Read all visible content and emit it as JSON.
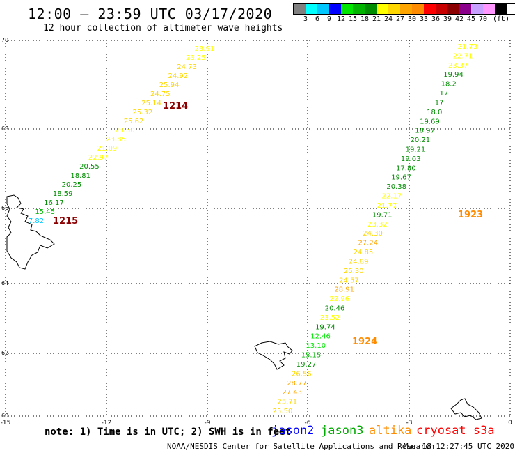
{
  "header": {
    "title": "12:00 – 23:59 UTC 03/17/2020",
    "subtitle": "12 hour collection of altimeter wave heights"
  },
  "legend": {
    "unit": "(ft)",
    "colors": [
      "#808080",
      "#00ffff",
      "#00c8ff",
      "#0000ff",
      "#00e600",
      "#00b400",
      "#008c00",
      "#ffff00",
      "#ffd700",
      "#ffa500",
      "#ff8c00",
      "#ff0000",
      "#c80000",
      "#8b0000",
      "#8b008b",
      "#c8a0ff",
      "#ff96ff",
      "#000000"
    ],
    "labels": [
      "3",
      "6",
      "9",
      "12",
      "15",
      "18",
      "21",
      "24",
      "27",
      "30",
      "33",
      "36",
      "39",
      "42",
      "45",
      "70"
    ]
  },
  "axes": {
    "lat_ticks": [
      "70",
      "68",
      "66",
      "64",
      "62",
      "60"
    ],
    "lon_ticks": [
      "-15",
      "-12",
      "-9",
      "-6",
      "-3",
      "0"
    ]
  },
  "tracks": [
    {
      "label": "1214",
      "label_color": "#8b0000",
      "points": [
        [
          "23.91",
          "#ffff00"
        ],
        [
          "23.25",
          "#ffff00"
        ],
        [
          "24.73",
          "#ffd700"
        ],
        [
          "24.92",
          "#ffd700"
        ],
        [
          "25.94",
          "#ffd700"
        ],
        [
          "24.75",
          "#ffd700"
        ],
        [
          "25.14",
          "#ffd700"
        ],
        [
          "25.32",
          "#ffd700"
        ],
        [
          "25.62",
          "#ffd700"
        ],
        [
          "23.50",
          "#ffff00"
        ],
        [
          "23.85",
          "#ffff00"
        ],
        [
          "21.09",
          "#ffff00"
        ],
        [
          "22.97",
          "#ffff00"
        ],
        [
          "20.55",
          "#008c00"
        ],
        [
          "18.81",
          "#008c00"
        ],
        [
          "20.25",
          "#008c00"
        ],
        [
          "18.59",
          "#008c00"
        ],
        [
          "16.17",
          "#008c00"
        ],
        [
          "15.45",
          "#00b400"
        ],
        [
          "7.82",
          "#00c8ff"
        ]
      ]
    },
    {
      "label": "1215",
      "label_color": "#8b0000",
      "points": []
    },
    {
      "label": "1923",
      "label_color": "#ff8c00",
      "points": [
        [
          "21.73",
          "#ffff00"
        ],
        [
          "22.71",
          "#ffff00"
        ],
        [
          "23.37",
          "#ffff00"
        ],
        [
          "19.94",
          "#008c00"
        ],
        [
          "18.2",
          "#008c00"
        ],
        [
          "17",
          "#008c00"
        ],
        [
          "17",
          "#008c00"
        ],
        [
          "18.0",
          "#008c00"
        ],
        [
          "19.69",
          "#008c00"
        ],
        [
          "18.97",
          "#008c00"
        ],
        [
          "20.21",
          "#008c00"
        ],
        [
          "19.21",
          "#008c00"
        ],
        [
          "19.03",
          "#008c00"
        ],
        [
          "17.80",
          "#008c00"
        ],
        [
          "19.67",
          "#008c00"
        ],
        [
          "20.38",
          "#008c00"
        ],
        [
          "22.17",
          "#ffff00"
        ],
        [
          "21.77",
          "#ffff00"
        ],
        [
          "19.71",
          "#008c00"
        ],
        [
          "23.32",
          "#ffff00"
        ],
        [
          "24.30",
          "#ffd700"
        ],
        [
          "27.24",
          "#ffa500"
        ],
        [
          "24.85",
          "#ffd700"
        ],
        [
          "24.89",
          "#ffd700"
        ],
        [
          "25.30",
          "#ffd700"
        ],
        [
          "24.57",
          "#ffd700"
        ],
        [
          "28.91",
          "#ffa500"
        ],
        [
          "22.96",
          "#ffff00"
        ],
        [
          "20.46",
          "#008c00"
        ],
        [
          "23.52",
          "#ffff00"
        ],
        [
          "19.74",
          "#008c00"
        ],
        [
          "12.46",
          "#00e600"
        ],
        [
          "13.10",
          "#00e600"
        ],
        [
          "15.15",
          "#00b400"
        ],
        [
          "19.27",
          "#008c00"
        ],
        [
          "26.56",
          "#ffd700"
        ],
        [
          "28.77",
          "#ffa500"
        ],
        [
          "27.43",
          "#ffa500"
        ],
        [
          "25.71",
          "#ffd700"
        ],
        [
          "25.50",
          "#ffd700"
        ]
      ]
    },
    {
      "label": "1924",
      "label_color": "#ff8c00",
      "points": []
    }
  ],
  "footer": {
    "note": "note: 1) Time is in UTC; 2) SWH is in feet",
    "satellites": [
      {
        "name": "jason2",
        "color": "#0000ff"
      },
      {
        "name": "jason3",
        "color": "#00aa00"
      },
      {
        "name": "altika",
        "color": "#ff8c00"
      },
      {
        "name": "cryosat s3a",
        "color": "#ff0000"
      }
    ],
    "credit": "NOAA/NESDIS Center for Satellite Applications and Research",
    "timestamp": "Mar 18 12:27:45 UTC 2020"
  }
}
